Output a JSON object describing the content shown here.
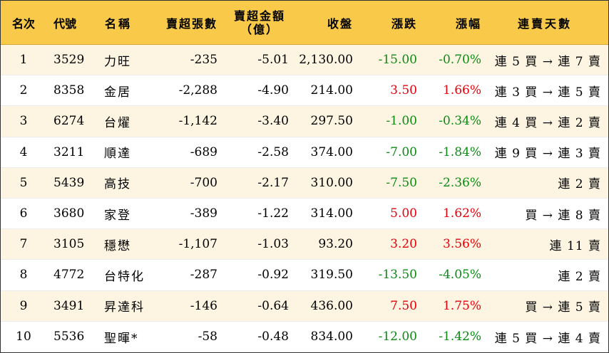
{
  "colors": {
    "header_bg": "#f9c94a",
    "row_stripe_bg": "#fdf5e1",
    "row_plain_bg": "#ffffff",
    "up": "#e8000b",
    "down": "#0b8a14"
  },
  "table": {
    "headers": {
      "rank": "名次",
      "code": "代號",
      "name": "名稱",
      "sheets": "賣超張數",
      "amount_line1": "賣超金額",
      "amount_line2": "（億）",
      "close": "收盤",
      "change": "漲跌",
      "pct": "漲幅",
      "streak": "連賣天數"
    },
    "rows": [
      {
        "rank": "1",
        "code": "3529",
        "name": "力旺",
        "sheets": "-235",
        "amount": "-5.01",
        "close": "2,130.00",
        "change": "-15.00",
        "pct": "-0.70%",
        "direction": "down",
        "streak": "連 5 買 → 連 7 賣"
      },
      {
        "rank": "2",
        "code": "8358",
        "name": "金居",
        "sheets": "-2,288",
        "amount": "-4.90",
        "close": "214.00",
        "change": "3.50",
        "pct": "1.66%",
        "direction": "up",
        "streak": "連 3 買 → 連 5 賣"
      },
      {
        "rank": "3",
        "code": "6274",
        "name": "台燿",
        "sheets": "-1,142",
        "amount": "-3.40",
        "close": "297.50",
        "change": "-1.00",
        "pct": "-0.34%",
        "direction": "down",
        "streak": "連 4 買 → 連 2 賣"
      },
      {
        "rank": "4",
        "code": "3211",
        "name": "順達",
        "sheets": "-689",
        "amount": "-2.58",
        "close": "374.00",
        "change": "-7.00",
        "pct": "-1.84%",
        "direction": "down",
        "streak": "連 9 買 → 連 3 賣"
      },
      {
        "rank": "5",
        "code": "5439",
        "name": "高技",
        "sheets": "-700",
        "amount": "-2.17",
        "close": "310.00",
        "change": "-7.50",
        "pct": "-2.36%",
        "direction": "down",
        "streak": "連 2 賣"
      },
      {
        "rank": "6",
        "code": "3680",
        "name": "家登",
        "sheets": "-389",
        "amount": "-1.22",
        "close": "314.00",
        "change": "5.00",
        "pct": "1.62%",
        "direction": "up",
        "streak": "買 → 連 8 賣"
      },
      {
        "rank": "7",
        "code": "3105",
        "name": "穩懋",
        "sheets": "-1,107",
        "amount": "-1.03",
        "close": "93.20",
        "change": "3.20",
        "pct": "3.56%",
        "direction": "up",
        "streak": "連 11 賣"
      },
      {
        "rank": "8",
        "code": "4772",
        "name": "台特化",
        "sheets": "-287",
        "amount": "-0.92",
        "close": "319.50",
        "change": "-13.50",
        "pct": "-4.05%",
        "direction": "down",
        "streak": "連 2 賣"
      },
      {
        "rank": "9",
        "code": "3491",
        "name": "昇達科",
        "sheets": "-146",
        "amount": "-0.64",
        "close": "436.00",
        "change": "7.50",
        "pct": "1.75%",
        "direction": "up",
        "streak": "買 → 連 5 賣"
      },
      {
        "rank": "10",
        "code": "5536",
        "name": "聖暉*",
        "sheets": "-58",
        "amount": "-0.48",
        "close": "834.00",
        "change": "-12.00",
        "pct": "-1.42%",
        "direction": "down",
        "streak": "連 5 買 → 連 4 賣"
      }
    ]
  }
}
